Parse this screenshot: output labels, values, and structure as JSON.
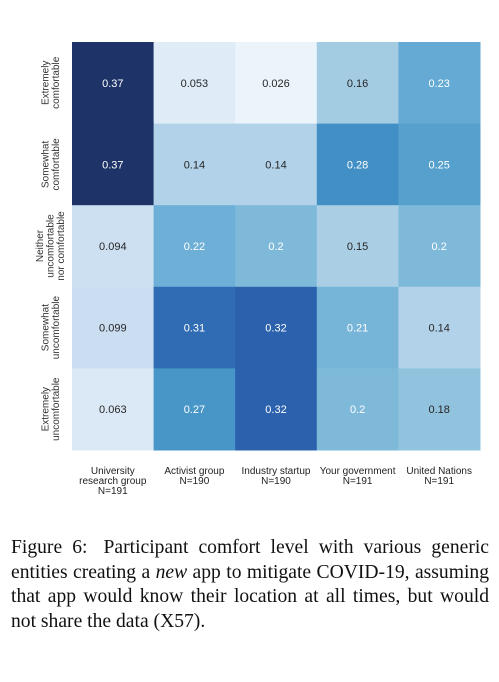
{
  "chart_data": {
    "type": "heatmap",
    "row_labels": [
      [
        "Extremely",
        "comfortable"
      ],
      [
        "Somewhat",
        "comfortable"
      ],
      [
        "Neither",
        "uncomfortable",
        "nor comfortable"
      ],
      [
        "Somewhat",
        "uncomfortable"
      ],
      [
        "Extremely",
        "uncomfortable"
      ]
    ],
    "col_labels": [
      [
        "University",
        "research group",
        "N=191"
      ],
      [
        "Activist group",
        "N=190"
      ],
      [
        "Industry startup",
        "N=190"
      ],
      [
        "Your government",
        "N=191"
      ],
      [
        "United Nations",
        "N=191"
      ]
    ],
    "values": [
      [
        0.37,
        0.053,
        0.026,
        0.16,
        0.23
      ],
      [
        0.37,
        0.14,
        0.14,
        0.28,
        0.25
      ],
      [
        0.094,
        0.22,
        0.2,
        0.15,
        0.2
      ],
      [
        0.099,
        0.31,
        0.32,
        0.21,
        0.14
      ],
      [
        0.063,
        0.27,
        0.32,
        0.2,
        0.18
      ]
    ],
    "color_scale": "Blues",
    "vmin": 0.0,
    "vmax": 0.37,
    "low_color": "#f7fbff",
    "high_color": "#1e3468"
  },
  "caption": {
    "label": "Figure 6:",
    "text_before": "Participant comfort level with various generic entities creating a ",
    "emphasis": "new",
    "text_after": " app to mitigate COVID-19, assuming that app would know their location at all times, but would not share the data (X57)."
  }
}
